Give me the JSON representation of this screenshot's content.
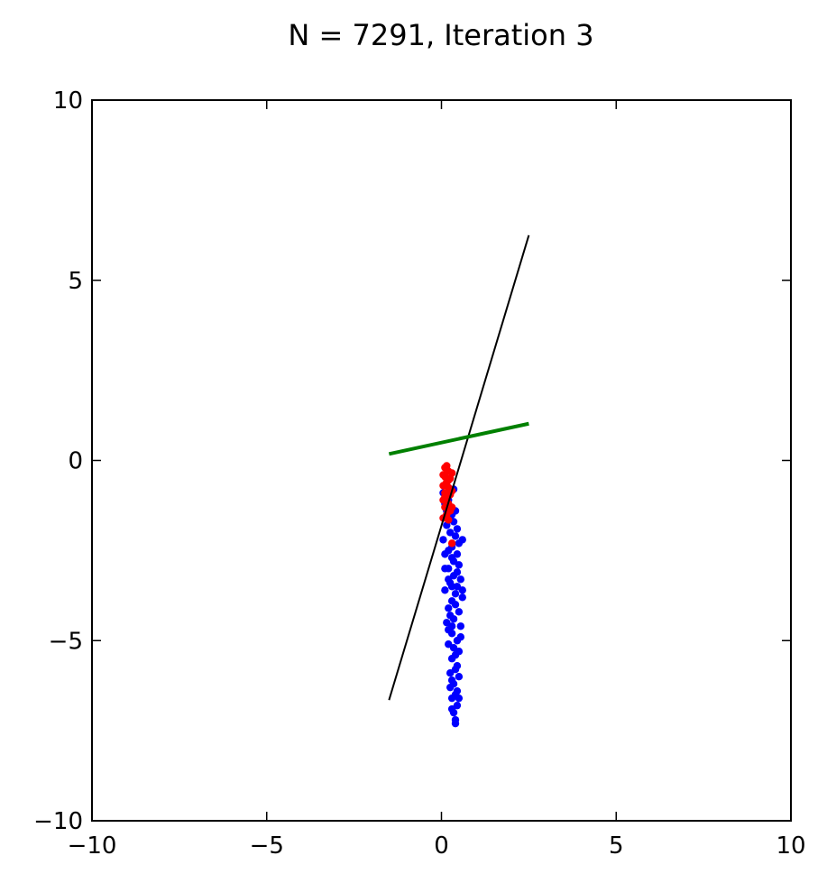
{
  "chart_data": {
    "type": "scatter",
    "title": "N = 7291, Iteration 3",
    "xlabel": "",
    "ylabel": "",
    "xlim": [
      -10,
      10
    ],
    "ylim": [
      -10,
      10
    ],
    "grid": false,
    "x_ticks": [
      -10,
      -5,
      0,
      5,
      10
    ],
    "y_ticks": [
      -10,
      -5,
      0,
      5,
      10
    ],
    "x_tick_labels": [
      "−10",
      "−5",
      "0",
      "5",
      "10"
    ],
    "y_tick_labels": [
      "−10",
      "−5",
      "0",
      "5",
      "10"
    ],
    "series": [
      {
        "name": "class-blue-cluster",
        "kind": "points",
        "color": "#0000ff",
        "points": [
          [
            0.05,
            -0.9
          ],
          [
            0.1,
            -1.2
          ],
          [
            0.2,
            -1.1
          ],
          [
            0.35,
            -0.8
          ],
          [
            0.3,
            -1.5
          ],
          [
            0.15,
            -1.8
          ],
          [
            0.4,
            -1.4
          ],
          [
            0.25,
            -2.0
          ],
          [
            0.05,
            -2.2
          ],
          [
            0.45,
            -1.9
          ],
          [
            0.3,
            -2.4
          ],
          [
            0.1,
            -2.6
          ],
          [
            0.5,
            -2.3
          ],
          [
            0.35,
            -2.8
          ],
          [
            0.2,
            -3.0
          ],
          [
            0.6,
            -2.2
          ],
          [
            0.45,
            -3.1
          ],
          [
            0.25,
            -3.4
          ],
          [
            0.55,
            -3.3
          ],
          [
            0.1,
            -3.6
          ],
          [
            0.4,
            -3.7
          ],
          [
            0.3,
            -3.9
          ],
          [
            0.6,
            -3.8
          ],
          [
            0.2,
            -4.1
          ],
          [
            0.5,
            -4.2
          ],
          [
            0.35,
            -4.4
          ],
          [
            0.15,
            -4.5
          ],
          [
            0.55,
            -4.6
          ],
          [
            0.3,
            -4.8
          ],
          [
            0.45,
            -5.0
          ],
          [
            0.2,
            -5.1
          ],
          [
            0.5,
            -5.3
          ],
          [
            0.3,
            -5.5
          ],
          [
            0.45,
            -5.7
          ],
          [
            0.25,
            -5.9
          ],
          [
            0.5,
            -6.0
          ],
          [
            0.35,
            -6.2
          ],
          [
            0.45,
            -6.4
          ],
          [
            0.3,
            -6.6
          ],
          [
            0.45,
            -6.8
          ],
          [
            0.35,
            -7.0
          ],
          [
            0.4,
            -7.2
          ],
          [
            0.4,
            -7.3
          ],
          [
            0.3,
            -6.9
          ],
          [
            0.5,
            -6.6
          ],
          [
            0.25,
            -6.3
          ],
          [
            0.4,
            -5.8
          ],
          [
            0.35,
            -5.2
          ],
          [
            0.55,
            -4.9
          ],
          [
            0.25,
            -4.3
          ],
          [
            0.45,
            -3.5
          ],
          [
            0.35,
            -3.2
          ],
          [
            0.3,
            -2.7
          ],
          [
            0.2,
            -2.5
          ],
          [
            0.4,
            -2.1
          ],
          [
            0.25,
            -1.6
          ],
          [
            0.15,
            -1.4
          ],
          [
            0.35,
            -1.7
          ],
          [
            0.45,
            -2.6
          ],
          [
            0.3,
            -3.5
          ],
          [
            0.4,
            -4.0
          ],
          [
            0.3,
            -4.6
          ],
          [
            0.4,
            -5.4
          ],
          [
            0.3,
            -6.1
          ],
          [
            0.4,
            -6.5
          ],
          [
            0.2,
            -3.3
          ],
          [
            0.5,
            -2.9
          ],
          [
            0.6,
            -3.6
          ],
          [
            0.1,
            -3.0
          ],
          [
            0.2,
            -4.7
          ]
        ]
      },
      {
        "name": "class-red-cluster",
        "kind": "points",
        "color": "#ff0000",
        "points": [
          [
            0.1,
            -0.2
          ],
          [
            0.15,
            -0.15
          ],
          [
            0.2,
            -0.3
          ],
          [
            0.1,
            -0.45
          ],
          [
            0.25,
            -0.5
          ],
          [
            0.15,
            -0.6
          ],
          [
            0.05,
            -0.7
          ],
          [
            0.2,
            -0.75
          ],
          [
            0.1,
            -0.9
          ],
          [
            0.25,
            -0.95
          ],
          [
            0.15,
            -1.05
          ],
          [
            0.05,
            -1.1
          ],
          [
            0.2,
            -1.2
          ],
          [
            0.1,
            -1.3
          ],
          [
            0.25,
            -1.4
          ],
          [
            0.15,
            -1.5
          ],
          [
            0.3,
            -0.35
          ],
          [
            0.05,
            -0.4
          ],
          [
            0.3,
            -0.85
          ],
          [
            0.05,
            -1.6
          ],
          [
            0.3,
            -1.3
          ],
          [
            0.2,
            -0.55
          ],
          [
            0.1,
            -1.0
          ],
          [
            0.2,
            -1.65
          ],
          [
            0.3,
            -2.3
          ]
        ]
      },
      {
        "name": "black-line",
        "kind": "line",
        "color": "#000000",
        "stroke_width": 2,
        "points": [
          [
            -1.5,
            -6.65
          ],
          [
            2.5,
            6.25
          ]
        ]
      },
      {
        "name": "green-line",
        "kind": "line",
        "color": "#008000",
        "stroke_width": 4,
        "points": [
          [
            -1.5,
            0.18
          ],
          [
            2.5,
            1.02
          ]
        ]
      }
    ]
  }
}
